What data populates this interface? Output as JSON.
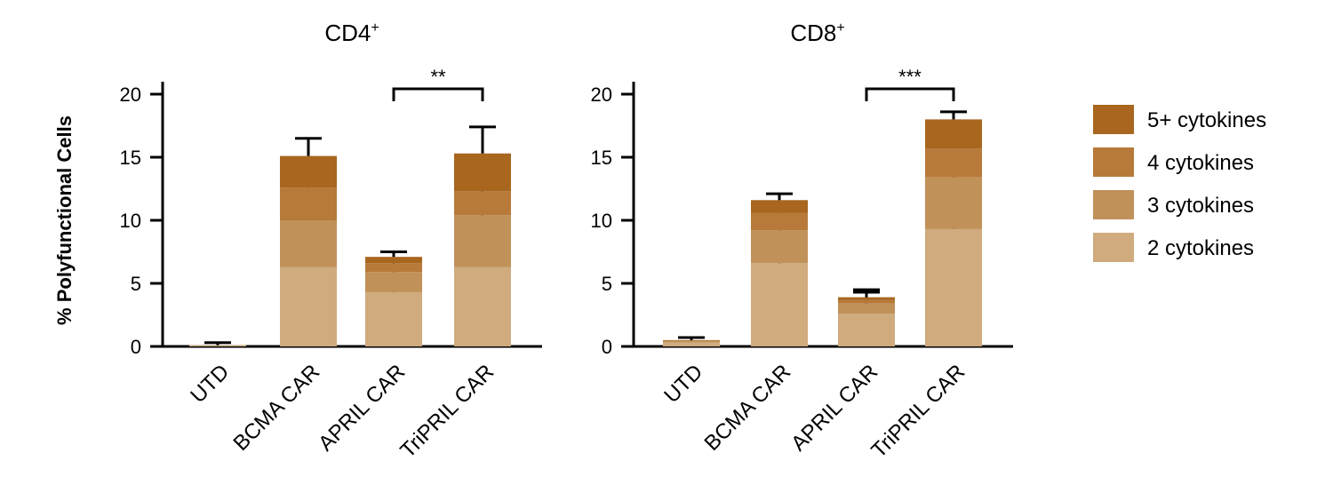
{
  "chart_data": [
    {
      "type": "bar",
      "stacked": true,
      "title": "CD4",
      "title_superscript": "+",
      "ylabel": "% Polyfunctional Cells",
      "ylim": [
        0,
        20
      ],
      "yticks": [
        0,
        5,
        10,
        15,
        20
      ],
      "categories": [
        "UTD",
        "BCMA CAR",
        "APRIL CAR",
        "TriPRIL CAR"
      ],
      "series": [
        {
          "name": "2 cytokines",
          "values": [
            0.1,
            6.3,
            4.3,
            6.3
          ],
          "error": [
            0,
            0.7,
            1.0,
            0.5
          ]
        },
        {
          "name": "3 cytokines",
          "values": [
            0.0,
            3.7,
            1.6,
            4.1
          ],
          "error": [
            0,
            1.3,
            0.4,
            1.2
          ]
        },
        {
          "name": "4 cytokines",
          "values": [
            0.0,
            2.6,
            0.7,
            1.9
          ],
          "error": [
            0,
            0.7,
            0.3,
            1.2
          ]
        },
        {
          "name": "5+ cytokines",
          "values": [
            0.0,
            2.5,
            0.5,
            3.0
          ],
          "error": [
            0.2,
            1.4,
            0.4,
            2.1
          ]
        }
      ],
      "significance": {
        "label": "**",
        "from": "APRIL CAR",
        "to": "TriPRIL CAR"
      }
    },
    {
      "type": "bar",
      "stacked": true,
      "title": "CD8",
      "title_superscript": "+",
      "ylim": [
        0,
        20
      ],
      "yticks": [
        0,
        5,
        10,
        15,
        20
      ],
      "categories": [
        "UTD",
        "BCMA CAR",
        "APRIL CAR",
        "TriPRIL CAR"
      ],
      "series": [
        {
          "name": "2 cytokines",
          "values": [
            0.3,
            6.6,
            2.6,
            9.3
          ],
          "error": [
            0,
            0.9,
            0,
            0.5
          ]
        },
        {
          "name": "3 cytokines",
          "values": [
            0.1,
            2.6,
            0.8,
            4.1
          ],
          "error": [
            0,
            0.6,
            1.1,
            0.5
          ]
        },
        {
          "name": "4 cytokines",
          "values": [
            0.05,
            1.4,
            0.3,
            2.3
          ],
          "error": [
            0,
            0.6,
            0,
            0.6
          ]
        },
        {
          "name": "5+ cytokines",
          "values": [
            0.05,
            1.0,
            0.2,
            2.3
          ],
          "error": [
            0.2,
            0.5,
            0.4,
            0.6
          ]
        }
      ],
      "significance": {
        "label": "***",
        "from": "APRIL CAR",
        "to": "TriPRIL CAR"
      }
    }
  ],
  "legend": {
    "placement": "right",
    "items": [
      {
        "label": "5+ cytokines",
        "color": "#a8661f"
      },
      {
        "label": "4 cytokines",
        "color": "#b77a3a"
      },
      {
        "label": "3 cytokines",
        "color": "#c1915a"
      },
      {
        "label": "2 cytokines",
        "color": "#cfab7e"
      }
    ]
  },
  "colors": {
    "2 cytokines": "#cfab7e",
    "3 cytokines": "#c1915a",
    "4 cytokines": "#b77a3a",
    "5+ cytokines": "#a8661f"
  }
}
